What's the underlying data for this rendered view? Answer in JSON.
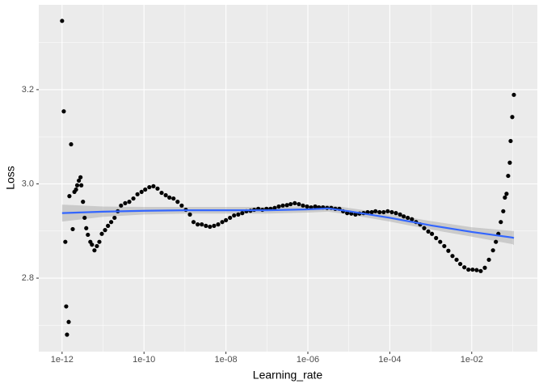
{
  "chart_data": {
    "type": "scatter",
    "x_label": "Learning_rate",
    "y_label": "Loss",
    "xlog": true,
    "grid": true,
    "xlim": [
      2.7e-13,
      0.4
    ],
    "ylim": [
      2.644,
      3.38
    ],
    "xticks": [
      {
        "value": 1e-12,
        "label": "1e-12"
      },
      {
        "value": 1e-10,
        "label": "1e-10"
      },
      {
        "value": 1e-08,
        "label": "1e-08"
      },
      {
        "value": 1e-06,
        "label": "1e-06"
      },
      {
        "value": 0.0001,
        "label": "1e-04"
      },
      {
        "value": 0.01,
        "label": "1e-02"
      }
    ],
    "yticks": [
      2.8,
      {
        "value": 3.0,
        "label": "3.0"
      },
      3.2
    ],
    "x_minor_grid": [
      1e-11,
      1e-09,
      1e-07,
      1e-05,
      0.001,
      0.1
    ],
    "y_minor_grid": [
      2.7,
      2.9,
      3.1,
      3.3
    ],
    "series": [
      {
        "color": "#000000",
        "x": [
          1e-12,
          1.1e-12,
          1.2e-12,
          1.26e-12,
          1.32e-12,
          1.45e-12,
          1.51e-12,
          1.66e-12,
          1.82e-12,
          2e-12,
          2.19e-12,
          2.34e-12,
          2.57e-12,
          2.82e-12,
          2.95e-12,
          3.24e-12,
          3.55e-12,
          3.89e-12,
          4.27e-12,
          4.9e-12,
          5.37e-12,
          6.17e-12,
          7.08e-12,
          8.13e-12,
          9.33e-12,
          1.12e-11,
          1.32e-11,
          1.58e-11,
          1.91e-11,
          2.29e-11,
          2.75e-11,
          3.47e-11,
          4.37e-11,
          5.5e-11,
          6.92e-11,
          8.71e-11,
          1.07e-10,
          1.35e-10,
          1.7e-10,
          2.14e-10,
          2.69e-10,
          3.39e-10,
          4.17e-10,
          5.25e-10,
          6.61e-10,
          8.32e-10,
          1.05e-09,
          1.32e-09,
          1.62e-09,
          2.04e-09,
          2.57e-09,
          3.24e-09,
          4.07e-09,
          5.13e-09,
          6.46e-09,
          8.13e-09,
          1e-08,
          1.26e-08,
          1.58e-08,
          2e-08,
          2.51e-08,
          3.16e-08,
          3.98e-08,
          4.9e-08,
          6.17e-08,
          7.76e-08,
          9.77e-08,
          1.23e-07,
          1.55e-07,
          1.95e-07,
          2.45e-07,
          3.09e-07,
          3.8e-07,
          4.79e-07,
          6.03e-07,
          7.59e-07,
          9.55e-07,
          1.2e-06,
          1.51e-06,
          1.86e-06,
          2.34e-06,
          2.95e-06,
          3.72e-06,
          4.68e-06,
          5.89e-06,
          7.24e-06,
          9.12e-06,
          1.15e-05,
          1.45e-05,
          1.82e-05,
          2.29e-05,
          2.88e-05,
          3.63e-05,
          4.47e-05,
          5.62e-05,
          7.08e-05,
          8.91e-05,
          0.000112,
          0.000141,
          0.000178,
          0.000219,
          0.000275,
          0.000347,
          0.000437,
          0.00055,
          0.000692,
          0.000871,
          0.00107,
          0.00135,
          0.0017,
          0.00214,
          0.00269,
          0.00339,
          0.00427,
          0.00525,
          0.00661,
          0.00832,
          0.0105,
          0.0132,
          0.0166,
          0.0209,
          0.0263,
          0.0331,
          0.0389,
          0.0447,
          0.0513,
          0.0589,
          0.0646,
          0.0708,
          0.0776,
          0.0851,
          0.0891,
          0.0977,
          0.107
        ],
        "values": [
          3.346,
          3.154,
          2.877,
          2.74,
          2.68,
          2.707,
          2.974,
          3.084,
          2.904,
          2.983,
          2.988,
          2.997,
          3.007,
          3.014,
          2.997,
          2.962,
          2.928,
          2.906,
          2.892,
          2.877,
          2.871,
          2.859,
          2.868,
          2.877,
          2.894,
          2.902,
          2.911,
          2.919,
          2.928,
          2.942,
          2.954,
          2.959,
          2.962,
          2.969,
          2.978,
          2.983,
          2.988,
          2.993,
          2.995,
          2.99,
          2.981,
          2.976,
          2.971,
          2.969,
          2.962,
          2.954,
          2.945,
          2.935,
          2.919,
          2.914,
          2.914,
          2.911,
          2.909,
          2.911,
          2.914,
          2.919,
          2.923,
          2.928,
          2.933,
          2.935,
          2.938,
          2.942,
          2.943,
          2.945,
          2.947,
          2.945,
          2.947,
          2.947,
          2.949,
          2.952,
          2.954,
          2.955,
          2.957,
          2.959,
          2.957,
          2.954,
          2.952,
          2.95,
          2.952,
          2.95,
          2.95,
          2.949,
          2.949,
          2.947,
          2.947,
          2.942,
          2.938,
          2.937,
          2.935,
          2.937,
          2.938,
          2.94,
          2.94,
          2.942,
          2.94,
          2.94,
          2.942,
          2.94,
          2.938,
          2.935,
          2.931,
          2.928,
          2.925,
          2.919,
          2.914,
          2.906,
          2.899,
          2.894,
          2.885,
          2.877,
          2.868,
          2.858,
          2.847,
          2.839,
          2.83,
          2.823,
          2.818,
          2.818,
          2.817,
          2.815,
          2.822,
          2.839,
          2.859,
          2.877,
          2.894,
          2.919,
          2.942,
          2.971,
          2.979,
          3.017,
          3.045,
          3.091,
          3.142,
          3.189
        ]
      }
    ],
    "smooth": {
      "color": "#3366ff",
      "band_color": "#999999",
      "x": [
        1e-12,
        1e-11,
        1e-10,
        1e-09,
        1e-08,
        1e-07,
        1e-06,
        3.16e-06,
        1e-05,
        0.0001,
        0.001,
        0.01,
        0.1,
        0.107
      ],
      "values": [
        2.938,
        2.941,
        2.943,
        2.944,
        2.944,
        2.944,
        2.946,
        2.948,
        2.942,
        2.928,
        2.912,
        2.898,
        2.886,
        2.885
      ],
      "lower": [
        2.92,
        2.93,
        2.935,
        2.937,
        2.937,
        2.937,
        2.939,
        2.941,
        2.935,
        2.92,
        2.903,
        2.888,
        2.872,
        2.87
      ],
      "upper": [
        2.956,
        2.952,
        2.951,
        2.951,
        2.951,
        2.951,
        2.953,
        2.955,
        2.949,
        2.936,
        2.921,
        2.908,
        2.9,
        2.9
      ]
    }
  }
}
